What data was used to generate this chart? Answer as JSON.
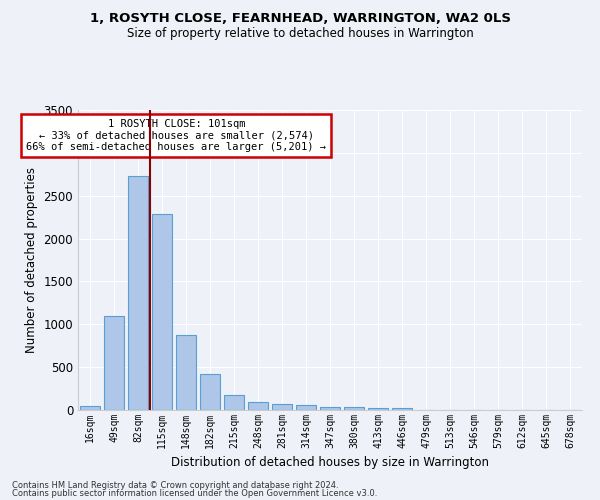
{
  "title": "1, ROSYTH CLOSE, FEARNHEAD, WARRINGTON, WA2 0LS",
  "subtitle": "Size of property relative to detached houses in Warrington",
  "xlabel": "Distribution of detached houses by size in Warrington",
  "ylabel": "Number of detached properties",
  "categories": [
    "16sqm",
    "49sqm",
    "82sqm",
    "115sqm",
    "148sqm",
    "182sqm",
    "215sqm",
    "248sqm",
    "281sqm",
    "314sqm",
    "347sqm",
    "380sqm",
    "413sqm",
    "446sqm",
    "479sqm",
    "513sqm",
    "546sqm",
    "579sqm",
    "612sqm",
    "645sqm",
    "678sqm"
  ],
  "values": [
    50,
    1100,
    2730,
    2290,
    870,
    420,
    170,
    90,
    65,
    55,
    40,
    30,
    25,
    20,
    0,
    0,
    0,
    0,
    0,
    0,
    0
  ],
  "bar_color": "#aec6e8",
  "bar_edge_color": "#5a9fd4",
  "vline_color": "#8b0000",
  "annotation_text": "1 ROSYTH CLOSE: 101sqm\n← 33% of detached houses are smaller (2,574)\n66% of semi-detached houses are larger (5,201) →",
  "annotation_box_color": "#ffffff",
  "annotation_box_edge_color": "#cc0000",
  "background_color": "#eef2f8",
  "grid_color": "#ffffff",
  "ylim": [
    0,
    3500
  ],
  "footer_line1": "Contains HM Land Registry data © Crown copyright and database right 2024.",
  "footer_line2": "Contains public sector information licensed under the Open Government Licence v3.0."
}
